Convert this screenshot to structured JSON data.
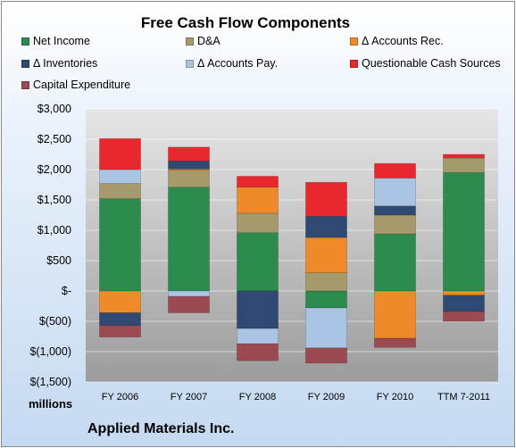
{
  "units_label": "millions",
  "company": "Applied Materials Inc.",
  "chart_data": {
    "type": "bar",
    "stacked": true,
    "title": "Free Cash Flow Components",
    "categories": [
      "FY 2006",
      "FY 2007",
      "FY 2008",
      "FY 2009",
      "FY 2010",
      "TTM 7-2011"
    ],
    "ylim": [
      -1500,
      3000
    ],
    "ytick_values": [
      3000,
      2500,
      2000,
      1500,
      1000,
      500,
      0,
      -500,
      -1000,
      -1500
    ],
    "ytick_labels": [
      "$3,000",
      "$2,500",
      "$2,000",
      "$1,500",
      "$1,000",
      "$500",
      "$-",
      "$(500)",
      "$(1,000)",
      "$(1,500)"
    ],
    "grid": true,
    "legend_position": "top",
    "series": [
      {
        "name": "Net Income",
        "color": "#2e8b4e",
        "values": [
          1520,
          1710,
          960,
          -280,
          940,
          1950
        ]
      },
      {
        "name": "D&A",
        "color": "#a59a6c",
        "values": [
          250,
          280,
          320,
          300,
          310,
          240
        ]
      },
      {
        "name": "Δ Accounts Rec.",
        "color": "#ee8a2a",
        "values": [
          -360,
          20,
          430,
          580,
          -780,
          -70
        ]
      },
      {
        "name": "Δ Inventories",
        "color": "#2f4a72",
        "values": [
          -210,
          130,
          -620,
          350,
          150,
          -270
        ]
      },
      {
        "name": "Δ Accounts Pay.",
        "color": "#aac4e4",
        "values": [
          230,
          -90,
          -250,
          -660,
          460,
          0
        ]
      },
      {
        "name": "Questionable Cash Sources",
        "color": "#e8272e",
        "values": [
          510,
          230,
          180,
          560,
          240,
          60
        ]
      },
      {
        "name": "Capital Expenditure",
        "color": "#9a4a50",
        "values": [
          -190,
          -270,
          -280,
          -250,
          -150,
          -160
        ]
      }
    ]
  }
}
